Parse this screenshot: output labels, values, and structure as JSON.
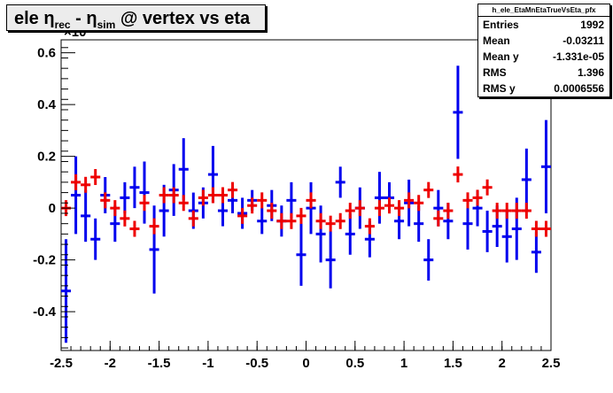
{
  "title": {
    "prefix": "ele η",
    "sub1": "rec",
    "middle": " - η",
    "sub2": "sim",
    "suffix": " @ vertex vs eta"
  },
  "stats": {
    "name": "h_ele_EtaMnEtaTrueVsEta_pfx",
    "rows": [
      {
        "label": "Entries",
        "value": "1992"
      },
      {
        "label": "Mean",
        "value": "-0.03211"
      },
      {
        "label": "Mean y",
        "value": "-1.331e-05"
      },
      {
        "label": "RMS",
        "value": "1.396"
      },
      {
        "label": "RMS y",
        "value": "0.0006556"
      }
    ]
  },
  "exponent_label": "×10",
  "colors": {
    "blue": "#0000ee",
    "red": "#ee0000",
    "axis": "#000000"
  },
  "chart_data": {
    "type": "scatter",
    "xlim": [
      -2.5,
      2.5
    ],
    "ylim": [
      -0.55,
      0.65
    ],
    "x_ticks": [
      "-2.5",
      "-2",
      "-1.5",
      "-1",
      "-0.5",
      "0",
      "0.5",
      "1",
      "1.5",
      "2",
      "2.5"
    ],
    "y_ticks": [
      "-0.4",
      "-0.2",
      "0",
      "0.2",
      "0.4",
      "0.6"
    ],
    "series": [
      {
        "color": "blue",
        "x": [
          -2.45,
          -2.35,
          -2.25,
          -2.15,
          -2.05,
          -1.95,
          -1.85,
          -1.75,
          -1.65,
          -1.55,
          -1.45,
          -1.35,
          -1.25,
          -1.15,
          -1.05,
          -0.95,
          -0.85,
          -0.75,
          -0.65,
          -0.55,
          -0.45,
          -0.35,
          -0.25,
          -0.15,
          -0.05,
          0.05,
          0.15,
          0.25,
          0.35,
          0.45,
          0.55,
          0.65,
          0.75,
          0.85,
          0.95,
          1.05,
          1.15,
          1.25,
          1.35,
          1.45,
          1.55,
          1.65,
          1.75,
          1.85,
          1.95,
          2.05,
          2.15,
          2.25,
          2.35,
          2.45
        ],
        "y": [
          -0.32,
          0.05,
          -0.03,
          -0.12,
          0.05,
          -0.06,
          0.04,
          0.08,
          0.06,
          -0.16,
          -0.01,
          0.07,
          0.15,
          -0.01,
          0.02,
          0.13,
          -0.01,
          0.03,
          -0.02,
          0.03,
          -0.05,
          0.01,
          -0.05,
          0.03,
          -0.18,
          0.0,
          -0.1,
          -0.2,
          0.1,
          -0.1,
          0.0,
          -0.12,
          0.04,
          0.04,
          -0.05,
          0.02,
          -0.06,
          -0.2,
          0.0,
          -0.05,
          0.37,
          -0.06,
          0.0,
          -0.09,
          -0.07,
          -0.11,
          -0.08,
          0.11,
          -0.17,
          0.16
        ],
        "err": [
          0.2,
          0.15,
          0.1,
          0.08,
          0.07,
          0.07,
          0.06,
          0.08,
          0.12,
          0.17,
          0.1,
          0.1,
          0.12,
          0.07,
          0.06,
          0.11,
          0.06,
          0.05,
          0.06,
          0.04,
          0.05,
          0.06,
          0.06,
          0.07,
          0.12,
          0.1,
          0.11,
          0.11,
          0.06,
          0.08,
          0.08,
          0.07,
          0.1,
          0.06,
          0.07,
          0.09,
          0.07,
          0.08,
          0.07,
          0.07,
          0.18,
          0.1,
          0.07,
          0.08,
          0.08,
          0.1,
          0.12,
          0.12,
          0.08,
          0.18
        ]
      },
      {
        "color": "red",
        "x": [
          -2.45,
          -2.35,
          -2.25,
          -2.15,
          -2.05,
          -1.95,
          -1.85,
          -1.75,
          -1.65,
          -1.55,
          -1.45,
          -1.35,
          -1.25,
          -1.15,
          -1.05,
          -0.95,
          -0.85,
          -0.75,
          -0.65,
          -0.55,
          -0.45,
          -0.35,
          -0.25,
          -0.15,
          -0.05,
          0.05,
          0.15,
          0.25,
          0.35,
          0.45,
          0.55,
          0.65,
          0.75,
          0.85,
          0.95,
          1.05,
          1.15,
          1.25,
          1.35,
          1.45,
          1.55,
          1.65,
          1.75,
          1.85,
          1.95,
          2.05,
          2.15,
          2.25,
          2.35,
          2.45
        ],
        "y": [
          0.0,
          0.1,
          0.09,
          0.12,
          0.03,
          0.0,
          -0.04,
          -0.08,
          0.02,
          -0.07,
          0.05,
          0.05,
          0.02,
          -0.04,
          0.04,
          0.05,
          0.05,
          0.07,
          -0.03,
          0.01,
          0.03,
          -0.01,
          -0.05,
          -0.05,
          -0.03,
          0.03,
          -0.05,
          -0.06,
          -0.05,
          -0.01,
          0.0,
          -0.07,
          0.0,
          0.01,
          0.0,
          0.03,
          0.02,
          0.07,
          -0.04,
          -0.01,
          0.13,
          0.03,
          0.04,
          0.08,
          -0.01,
          -0.01,
          -0.01,
          -0.01,
          -0.08,
          -0.08
        ]
      }
    ]
  }
}
